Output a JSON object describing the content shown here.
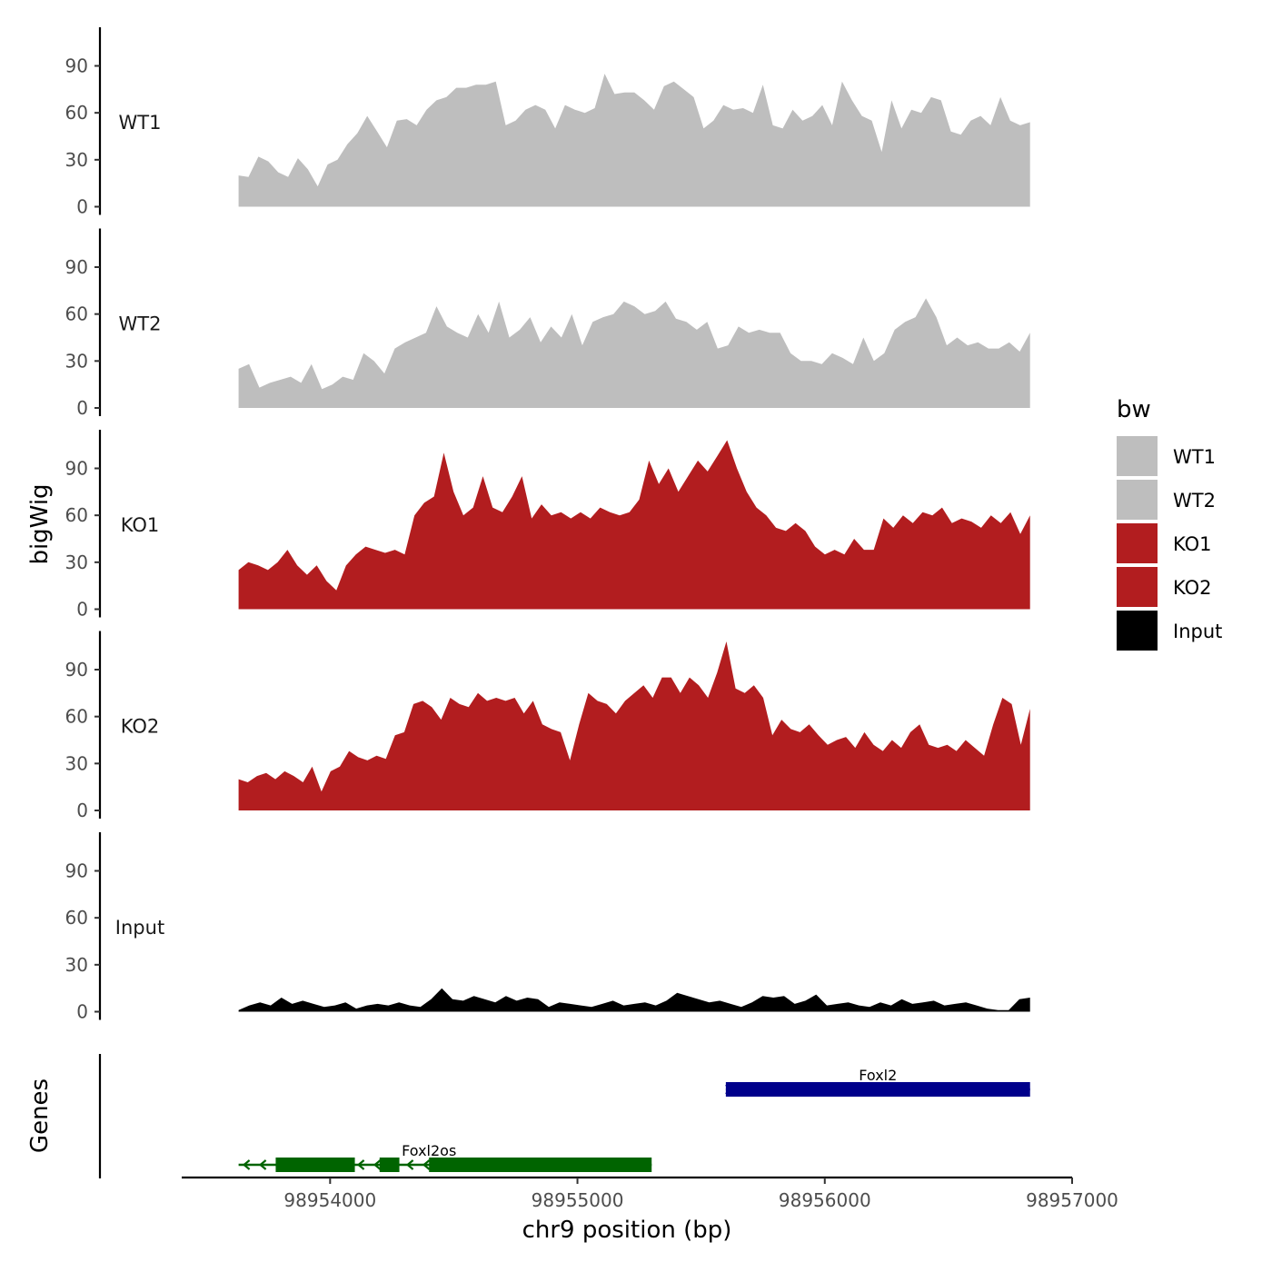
{
  "chart_data": {
    "type": "area",
    "title": "",
    "xlabel": "chr9 position (bp)",
    "ylabel": "bigWig",
    "genes_label": "Genes",
    "xlim": [
      98953400,
      98957000
    ],
    "x_ticks": [
      98954000,
      98955000,
      98956000,
      98957000
    ],
    "ylim": [
      0,
      112
    ],
    "y_ticks": [
      0,
      30,
      60,
      90
    ],
    "legend": {
      "title": "bw",
      "position": "right"
    },
    "x_range": [
      98953630,
      98956830
    ],
    "series": [
      {
        "name": "WT1",
        "color": "#bebebe",
        "values": [
          20,
          19,
          32,
          29,
          22,
          19,
          31,
          24,
          13,
          27,
          30,
          40,
          47,
          58,
          48,
          38,
          55,
          56,
          52,
          62,
          68,
          70,
          76,
          76,
          78,
          78,
          80,
          52,
          55,
          62,
          65,
          62,
          50,
          65,
          62,
          60,
          63,
          85,
          72,
          73,
          73,
          68,
          62,
          77,
          80,
          75,
          70,
          50,
          55,
          65,
          62,
          63,
          60,
          78,
          52,
          50,
          62,
          55,
          58,
          65,
          52,
          80,
          68,
          58,
          55,
          35,
          68,
          50,
          62,
          60,
          70,
          68,
          48,
          46,
          55,
          58,
          52,
          70,
          55,
          52,
          54
        ]
      },
      {
        "name": "WT2",
        "color": "#bebebe",
        "values": [
          25,
          28,
          13,
          16,
          18,
          20,
          16,
          28,
          12,
          15,
          20,
          18,
          35,
          30,
          22,
          38,
          42,
          45,
          48,
          65,
          52,
          48,
          45,
          60,
          48,
          68,
          45,
          50,
          58,
          42,
          52,
          45,
          60,
          40,
          55,
          58,
          60,
          68,
          65,
          60,
          62,
          68,
          57,
          55,
          50,
          55,
          38,
          40,
          52,
          48,
          50,
          48,
          48,
          35,
          30,
          30,
          28,
          35,
          32,
          28,
          45,
          30,
          35,
          50,
          55,
          58,
          70,
          58,
          40,
          45,
          40,
          42,
          38,
          38,
          42,
          36,
          48
        ]
      },
      {
        "name": "KO1",
        "color": "#b21d1f",
        "values": [
          25,
          30,
          28,
          25,
          30,
          38,
          28,
          22,
          28,
          18,
          12,
          28,
          35,
          40,
          38,
          36,
          38,
          35,
          60,
          68,
          72,
          100,
          75,
          60,
          65,
          85,
          65,
          62,
          72,
          85,
          58,
          67,
          60,
          62,
          58,
          62,
          58,
          65,
          62,
          60,
          62,
          70,
          95,
          80,
          90,
          75,
          85,
          95,
          88,
          98,
          108,
          90,
          75,
          65,
          60,
          52,
          50,
          55,
          50,
          40,
          35,
          38,
          35,
          45,
          38,
          38,
          58,
          52,
          60,
          55,
          62,
          60,
          65,
          55,
          58,
          56,
          52,
          60,
          55,
          62,
          48,
          60
        ]
      },
      {
        "name": "KO2",
        "color": "#b21d1f",
        "values": [
          20,
          18,
          22,
          24,
          20,
          25,
          22,
          18,
          28,
          12,
          25,
          28,
          38,
          34,
          32,
          35,
          33,
          48,
          50,
          68,
          70,
          66,
          58,
          72,
          68,
          66,
          75,
          70,
          72,
          70,
          72,
          62,
          70,
          55,
          52,
          50,
          32,
          55,
          75,
          70,
          68,
          62,
          70,
          75,
          80,
          72,
          85,
          85,
          75,
          85,
          80,
          72,
          88,
          108,
          78,
          75,
          80,
          72,
          48,
          58,
          52,
          50,
          55,
          48,
          42,
          45,
          47,
          40,
          50,
          42,
          38,
          45,
          40,
          50,
          55,
          42,
          40,
          42,
          38,
          45,
          40,
          35,
          55,
          72,
          68,
          42,
          65
        ]
      },
      {
        "name": "Input",
        "color": "#000000",
        "values": [
          1,
          4,
          6,
          4,
          9,
          5,
          7,
          5,
          3,
          4,
          6,
          2,
          4,
          5,
          4,
          6,
          4,
          3,
          8,
          15,
          8,
          7,
          10,
          8,
          6,
          10,
          7,
          9,
          8,
          3,
          6,
          5,
          4,
          3,
          5,
          7,
          4,
          5,
          6,
          4,
          7,
          12,
          10,
          8,
          6,
          7,
          5,
          3,
          6,
          10,
          9,
          10,
          5,
          7,
          11,
          4,
          5,
          6,
          4,
          3,
          6,
          4,
          8,
          5,
          6,
          7,
          4,
          5,
          6,
          4,
          2,
          1,
          1,
          8,
          9
        ]
      }
    ],
    "genes": [
      {
        "name": "Foxl2os",
        "color": "#006400",
        "strand": "-",
        "start": 98953630,
        "end": 98955300,
        "exons": [
          [
            98953780,
            98954100
          ],
          [
            98954200,
            98954280
          ],
          [
            98954400,
            98955300
          ]
        ]
      },
      {
        "name": "Foxl2",
        "color": "#00008b",
        "strand": "+",
        "start": 98955600,
        "end": 98956830,
        "exons": [
          [
            98955600,
            98956830
          ]
        ]
      }
    ]
  }
}
